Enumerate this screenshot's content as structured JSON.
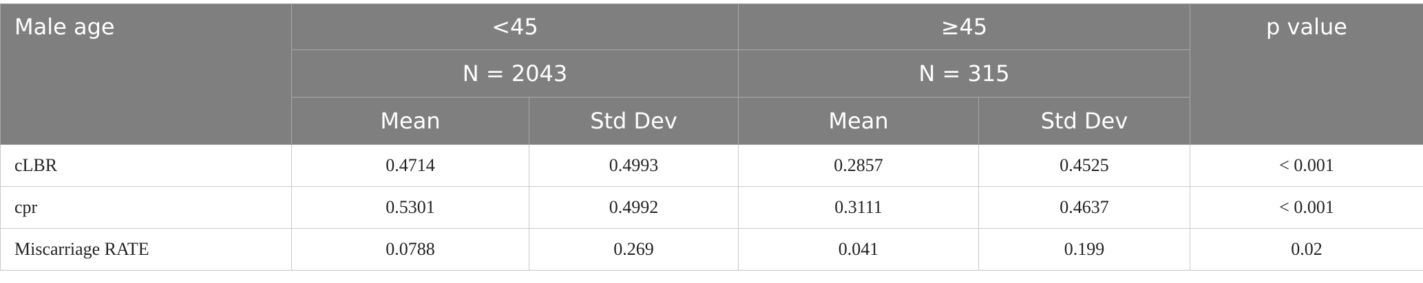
{
  "table": {
    "header": {
      "group_label": "Male age",
      "groups": [
        {
          "label": "<45",
          "n": "N = 2043"
        },
        {
          "label": "≥45",
          "n": "N = 315"
        }
      ],
      "stats": [
        "Mean",
        "Std Dev",
        "Mean",
        "Std Dev"
      ],
      "p_label": "p value"
    },
    "rows": [
      [
        "cLBR",
        "0.4714",
        "0.4993",
        "0.2857",
        "0.4525",
        "< 0.001"
      ],
      [
        "cpr",
        "0.5301",
        "0.4992",
        "0.3111",
        "0.4637",
        "< 0.001"
      ],
      [
        "Miscarriage RATE",
        "0.0788",
        "0.269",
        "0.041",
        "0.199",
        "0.02"
      ]
    ]
  }
}
